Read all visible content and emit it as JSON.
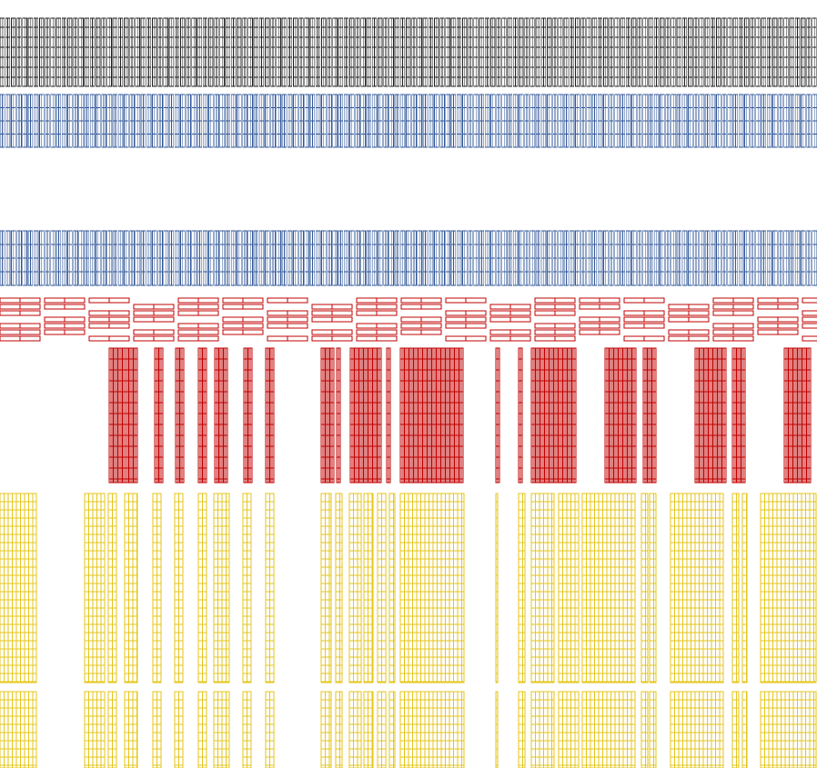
{
  "drawing": {
    "background": "#ffffff",
    "layers": [
      {
        "name": "black-racks",
        "color": "#1c1c1c"
      },
      {
        "name": "blue-racks-upper",
        "color": "#2f5597"
      },
      {
        "name": "blue-racks-lower",
        "color": "#2f5597"
      },
      {
        "name": "red-horizontal-racks",
        "color": "#c00000"
      },
      {
        "name": "red-vertical-racks",
        "color": "#c00000"
      },
      {
        "name": "yellow-grid-upper",
        "color": "#e6c619"
      },
      {
        "name": "yellow-grid-lower",
        "color": "#e6c619"
      }
    ]
  }
}
